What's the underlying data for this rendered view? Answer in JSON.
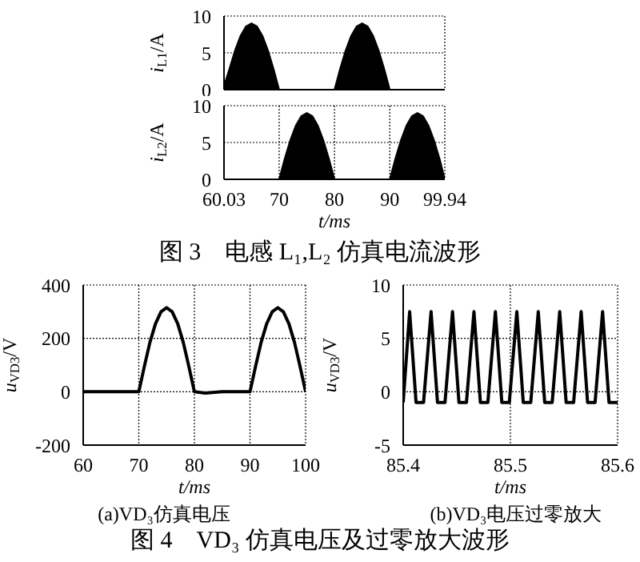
{
  "chart_data": [
    {
      "type": "area",
      "ylabel": "i$_{L1}$/A",
      "x": [
        60.03,
        61,
        62,
        63,
        64,
        65,
        66,
        67,
        68,
        69,
        70,
        80,
        81,
        82,
        83,
        84,
        85,
        86,
        87,
        88,
        89,
        90,
        99.94
      ],
      "series": [
        {
          "color": "#000000",
          "values": [
            0.5,
            2.8,
            5.3,
            7.3,
            8.6,
            9,
            8.6,
            7.3,
            5.3,
            2.8,
            0,
            0,
            2.8,
            5.3,
            7.3,
            8.6,
            9,
            8.6,
            7.3,
            5.3,
            2.8,
            0,
            0
          ]
        }
      ],
      "xlim": [
        60.03,
        99.94
      ],
      "xticks": [
        60.03,
        70,
        80,
        90,
        99.94
      ],
      "ylim": [
        0,
        10
      ],
      "yticks": [
        0,
        5,
        10
      ],
      "grid": true,
      "tick_labels": "y"
    },
    {
      "type": "area",
      "ylabel": "i$_{L2}$/A",
      "xlabel": "t/ms",
      "annotations": [
        "图 3　电感 L₁,L₂ 仿真电流波形"
      ],
      "x": [
        60.03,
        70,
        71,
        72,
        73,
        74,
        75,
        76,
        77,
        78,
        79,
        80,
        90,
        91,
        92,
        93,
        94,
        95,
        96,
        97,
        98,
        99,
        99.94
      ],
      "series": [
        {
          "color": "#000000",
          "values": [
            0,
            0,
            2.8,
            5.3,
            7.3,
            8.6,
            9,
            8.6,
            7.3,
            5.3,
            2.8,
            0,
            0,
            2.8,
            5.3,
            7.3,
            8.6,
            9,
            8.6,
            7.3,
            5.3,
            2.8,
            0
          ]
        }
      ],
      "xlim": [
        60.03,
        99.94
      ],
      "xticks": [
        60.03,
        70,
        80,
        90,
        99.94
      ],
      "ylim": [
        0,
        10
      ],
      "yticks": [
        0,
        5,
        10
      ],
      "grid": true
    },
    {
      "type": "line",
      "ylabel": "u$_{VD3}$/V",
      "xlabel": "t/ms",
      "annotations": [
        "(a)VD₃仿真电压",
        "图 4　VD₃ 仿真电压及过零放大波形"
      ],
      "x": [
        60,
        70,
        71,
        72,
        73,
        74,
        75,
        76,
        77,
        78,
        79,
        80,
        82,
        85,
        90,
        91,
        92,
        93,
        94,
        95,
        96,
        97,
        98,
        99,
        100
      ],
      "series": [
        {
          "color": "#000000",
          "values": [
            0,
            0,
            95,
            185,
            255,
            300,
            315,
            300,
            255,
            185,
            95,
            0,
            -5,
            0,
            0,
            95,
            185,
            255,
            300,
            315,
            300,
            255,
            185,
            95,
            0
          ]
        }
      ],
      "xlim": [
        60,
        100
      ],
      "xticks": [
        60,
        70,
        80,
        90,
        100
      ],
      "ylim": [
        -200,
        400
      ],
      "yticks": [
        -200,
        0,
        200,
        400
      ],
      "grid": true
    },
    {
      "type": "line",
      "ylabel": "u$_{VD3}$/V",
      "xlabel": "t/ms",
      "annotations": [
        "(b)VD₃电压过零放大"
      ],
      "x": [
        85.4,
        85.406,
        85.412,
        85.419,
        85.426,
        85.432,
        85.439,
        85.446,
        85.452,
        85.459,
        85.466,
        85.472,
        85.479,
        85.486,
        85.492,
        85.499,
        85.506,
        85.512,
        85.519,
        85.526,
        85.532,
        85.539,
        85.546,
        85.552,
        85.559,
        85.566,
        85.572,
        85.579,
        85.586,
        85.592,
        85.6
      ],
      "series": [
        {
          "color": "#000000",
          "values": [
            -1,
            7.5,
            -1,
            -1,
            7.5,
            -1,
            -1,
            7.5,
            -1,
            -1,
            7.5,
            -1,
            -1,
            7.5,
            -1,
            -1,
            7.5,
            -1,
            -1,
            7.5,
            -1,
            -1,
            7.5,
            -1,
            -1,
            7.5,
            -1,
            -1,
            7.5,
            -1,
            -1
          ]
        }
      ],
      "xlim": [
        85.4,
        85.6
      ],
      "xticks": [
        85.4,
        85.5,
        85.6
      ],
      "ylim": [
        -5,
        10
      ],
      "yticks": [
        -5,
        0,
        5,
        10
      ],
      "grid": true
    }
  ]
}
